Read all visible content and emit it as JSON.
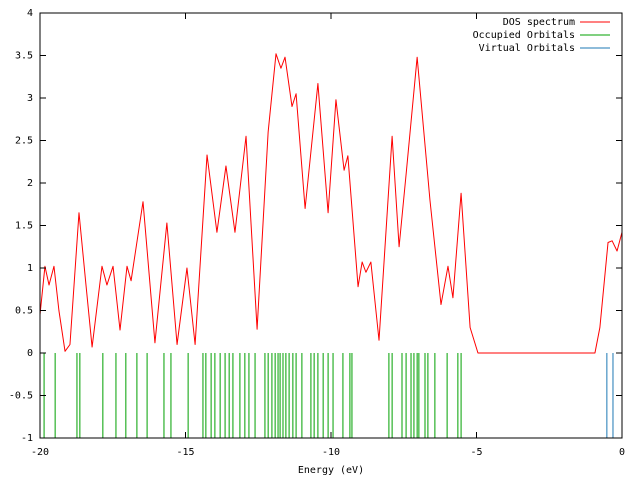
{
  "chart_data": {
    "type": "line",
    "xlabel": "Energy (eV)",
    "xlim": [
      -20,
      0
    ],
    "ylim": [
      -1,
      4
    ],
    "xticks": [
      -20,
      -15,
      -10,
      -5,
      0
    ],
    "yticks": [
      -1,
      -0.5,
      0,
      0.5,
      1,
      1.5,
      2,
      2.5,
      3,
      3.5,
      4
    ],
    "legend": "top right",
    "series": [
      {
        "name": "DOS spectrum",
        "color": "#ff0000",
        "style": "line",
        "x": [
          -20,
          -19.83,
          -19.69,
          -19.52,
          -19.35,
          -19.14,
          -18.97,
          -18.66,
          -18.42,
          -18.21,
          -17.87,
          -17.7,
          -17.49,
          -17.25,
          -17.01,
          -16.87,
          -16.46,
          -16.05,
          -15.64,
          -15.29,
          -14.95,
          -14.67,
          -14.26,
          -13.92,
          -13.61,
          -13.3,
          -12.92,
          -12.54,
          -12.16,
          -11.89,
          -11.72,
          -11.58,
          -11.34,
          -11.2,
          -10.89,
          -10.45,
          -10.1,
          -9.83,
          -9.55,
          -9.42,
          -9.07,
          -8.93,
          -8.8,
          -8.63,
          -8.35,
          -7.9,
          -7.66,
          -7.42,
          -7.04,
          -6.6,
          -6.22,
          -5.98,
          -5.81,
          -5.53,
          -5.22,
          -4.95,
          -0.93,
          -0.76,
          -0.48,
          -0.34,
          -0.17,
          0
        ],
        "values": [
          0.45,
          1.02,
          0.8,
          1.02,
          0.5,
          0.02,
          0.1,
          1.65,
          0.8,
          0.07,
          1.02,
          0.8,
          1.02,
          0.27,
          1.02,
          0.85,
          1.78,
          0.12,
          1.53,
          0.1,
          1.0,
          0.1,
          2.33,
          1.42,
          2.2,
          1.42,
          2.55,
          0.28,
          2.6,
          3.52,
          3.35,
          3.48,
          2.9,
          3.05,
          1.7,
          3.17,
          1.65,
          2.98,
          2.15,
          2.32,
          0.78,
          1.07,
          0.95,
          1.07,
          0.15,
          2.55,
          1.25,
          2.1,
          3.48,
          1.8,
          0.57,
          1.02,
          0.65,
          1.88,
          0.3,
          0,
          0,
          0.3,
          1.3,
          1.32,
          1.2,
          1.42
        ]
      },
      {
        "name": "Occupied Orbitals",
        "color": "#00a000",
        "style": "impulse",
        "x": [
          -19.86,
          -19.48,
          -18.73,
          -18.63,
          -17.84,
          -17.39,
          -17.05,
          -16.67,
          -16.32,
          -15.74,
          -15.5,
          -14.91,
          -14.4,
          -14.3,
          -14.12,
          -13.99,
          -13.81,
          -13.64,
          -13.5,
          -13.37,
          -13.13,
          -12.96,
          -12.82,
          -12.61,
          -12.27,
          -12.16,
          -12.03,
          -11.92,
          -11.82,
          -11.75,
          -11.65,
          -11.55,
          -11.44,
          -11.31,
          -11.2,
          -11.0,
          -10.69,
          -10.58,
          -10.45,
          -10.27,
          -10.1,
          -9.93,
          -9.59,
          -9.35,
          -9.28,
          -8.01,
          -7.9,
          -7.56,
          -7.42,
          -7.25,
          -7.15,
          -7.04,
          -6.98,
          -6.77,
          -6.67,
          -6.43,
          -6.01,
          -5.64,
          -5.53
        ],
        "values": [
          -1,
          -1,
          -1,
          -1,
          -1,
          -1,
          -1,
          -1,
          -1,
          -1,
          -1,
          -1,
          -1,
          -1,
          -1,
          -1,
          -1,
          -1,
          -1,
          -1,
          -1,
          -1,
          -1,
          -1,
          -1,
          -1,
          -1,
          -1,
          -1,
          -1,
          -1,
          -1,
          -1,
          -1,
          -1,
          -1,
          -1,
          -1,
          -1,
          -1,
          -1,
          -1,
          -1,
          -1,
          -1,
          -1,
          -1,
          -1,
          -1,
          -1,
          -1,
          -1,
          -1,
          -1,
          -1,
          -1,
          -1,
          -1,
          -1
        ]
      },
      {
        "name": "Virtual Orbitals",
        "color": "#1e78b4",
        "style": "impulse",
        "x": [
          -0.52,
          -0.31
        ],
        "values": [
          -1,
          -1
        ]
      }
    ]
  }
}
